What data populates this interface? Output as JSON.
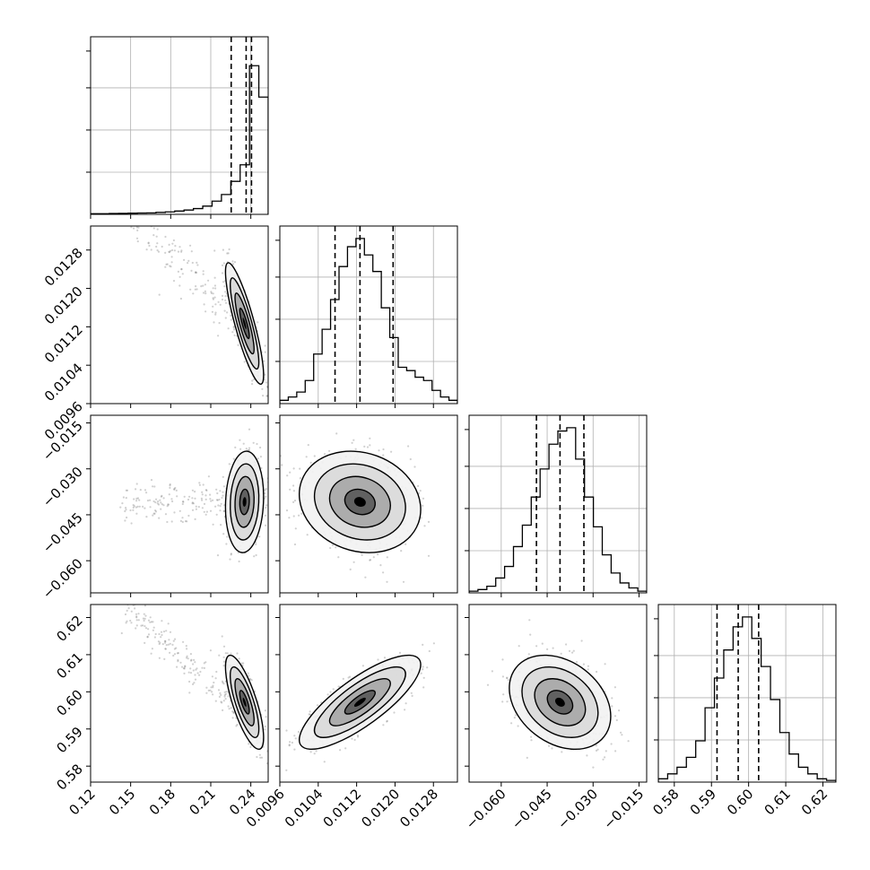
{
  "chart_data": {
    "type": "corner",
    "params": [
      {
        "ticks": [
          0.12,
          0.15,
          0.18,
          0.21,
          0.24
        ],
        "tick_labels": [
          "0.12",
          "0.15",
          "0.18",
          "0.21",
          "0.24"
        ],
        "range": [
          0.12,
          0.253
        ],
        "quantiles": [
          0.2253,
          0.2365,
          0.2405
        ]
      },
      {
        "ticks": [
          0.0096,
          0.0104,
          0.0112,
          0.012,
          0.0128
        ],
        "tick_labels": [
          "0.0096",
          "0.0104",
          "0.0112",
          "0.0120",
          "0.0128"
        ],
        "range": [
          0.0096,
          0.0133
        ],
        "quantiles": [
          0.01075,
          0.01127,
          0.01196
        ]
      },
      {
        "ticks": [
          -0.06,
          -0.045,
          -0.03,
          -0.015
        ],
        "tick_labels": [
          "−0.060",
          "−0.045",
          "−0.030",
          "−0.015"
        ],
        "range": [
          -0.0705,
          -0.0125
        ],
        "quantiles": [
          -0.0485,
          -0.0408,
          -0.033
        ]
      },
      {
        "ticks": [
          0.58,
          0.59,
          0.6,
          0.61,
          0.62
        ],
        "tick_labels": [
          "0.58",
          "0.59",
          "0.60",
          "0.61",
          "0.62"
        ],
        "range": [
          0.5757,
          0.6235
        ],
        "quantiles": [
          0.5915,
          0.5972,
          0.6027
        ]
      }
    ],
    "hist1d": [
      [
        0.004,
        0.004,
        0.005,
        0.006,
        0.007,
        0.008,
        0.009,
        0.012,
        0.015,
        0.02,
        0.026,
        0.035,
        0.05,
        0.08,
        0.12,
        0.2,
        0.3,
        0.9,
        0.71
      ],
      [
        0.02,
        0.04,
        0.07,
        0.14,
        0.3,
        0.45,
        0.63,
        0.83,
        0.95,
        1.0,
        0.9,
        0.8,
        0.58,
        0.4,
        0.22,
        0.2,
        0.16,
        0.14,
        0.08,
        0.04,
        0.02
      ],
      [
        0.01,
        0.02,
        0.04,
        0.09,
        0.16,
        0.28,
        0.41,
        0.58,
        0.75,
        0.9,
        0.98,
        1.0,
        0.81,
        0.58,
        0.4,
        0.23,
        0.12,
        0.06,
        0.03,
        0.01
      ],
      [
        0.02,
        0.05,
        0.09,
        0.15,
        0.25,
        0.45,
        0.63,
        0.8,
        0.94,
        1.0,
        0.87,
        0.7,
        0.5,
        0.3,
        0.17,
        0.09,
        0.05,
        0.02,
        0.01
      ]
    ],
    "pairs": [
      {
        "x": 0,
        "y": 1,
        "mean": [
          0.2353,
          0.01127
        ],
        "sd": [
          0.0062,
          0.00055
        ],
        "rho": -0.85,
        "tail": [
          -1,
          1
        ]
      },
      {
        "x": 0,
        "y": 2,
        "mean": [
          0.2353,
          -0.0408
        ],
        "sd": [
          0.0062,
          0.0072
        ],
        "rho": 0.1,
        "tail": [
          -1,
          0
        ]
      },
      {
        "x": 1,
        "y": 2,
        "mean": [
          0.01127,
          -0.0408
        ],
        "sd": [
          0.00055,
          0.0072
        ],
        "rho": -0.15,
        "tail": [
          0,
          0
        ]
      },
      {
        "x": 0,
        "y": 3,
        "mean": [
          0.2353,
          0.5972
        ],
        "sd": [
          0.0062,
          0.0055
        ],
        "rho": -0.75,
        "tail": [
          -1,
          1
        ]
      },
      {
        "x": 1,
        "y": 3,
        "mean": [
          0.01127,
          0.5972
        ],
        "sd": [
          0.00055,
          0.0055
        ],
        "rho": 0.8,
        "tail": [
          0,
          0
        ]
      },
      {
        "x": 2,
        "y": 3,
        "mean": [
          -0.0408,
          0.5972
        ],
        "sd": [
          0.0072,
          0.0055
        ],
        "rho": -0.3,
        "tail": [
          0,
          0
        ]
      }
    ],
    "contour_levels_sigma": [
      0.5,
      1.0,
      1.5,
      2.0
    ],
    "grid": true,
    "quantile_style": "dashed"
  }
}
